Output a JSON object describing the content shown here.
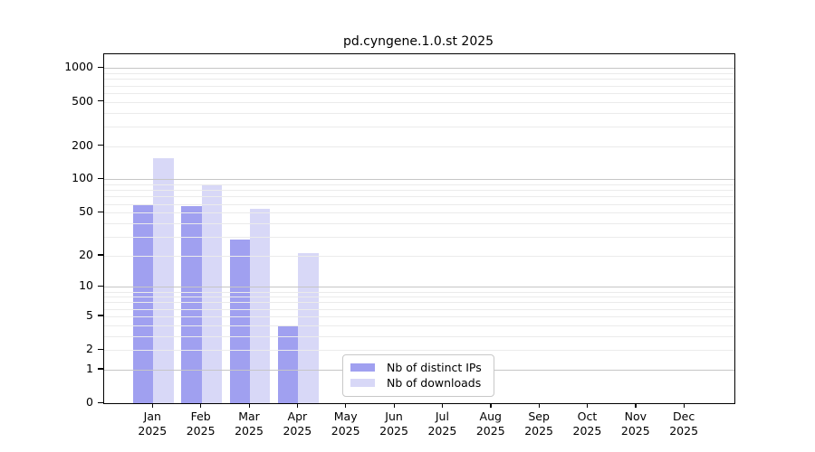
{
  "chart_data": {
    "type": "bar",
    "title": "pd.cyngene.1.0.st 2025",
    "categories": [
      "Jan",
      "Feb",
      "Mar",
      "Apr",
      "May",
      "Jun",
      "Jul",
      "Aug",
      "Sep",
      "Oct",
      "Nov",
      "Dec"
    ],
    "year_label": "2025",
    "series": [
      {
        "name": "Nb of distinct IPs",
        "color": "#a0a0f0",
        "values": [
          58,
          57,
          28,
          4,
          0,
          0,
          0,
          0,
          0,
          0,
          0,
          0
        ]
      },
      {
        "name": "Nb of downloads",
        "color": "#d8d8f7",
        "values": [
          155,
          90,
          54,
          21,
          0,
          0,
          0,
          0,
          0,
          0,
          0,
          0
        ]
      }
    ],
    "yticks": [
      0,
      1,
      2,
      5,
      10,
      20,
      50,
      100,
      200,
      500,
      1000
    ],
    "yscale": "log1p",
    "ylim": [
      0,
      1335
    ],
    "grid": "horizontal major at powers of 10, log minor lines, drawn above bars",
    "legend_position": "bottom-center",
    "axis_border_color": "#000000",
    "major_grid_color": "#c6c6c6",
    "minor_grid_color": "#ebebeb"
  }
}
